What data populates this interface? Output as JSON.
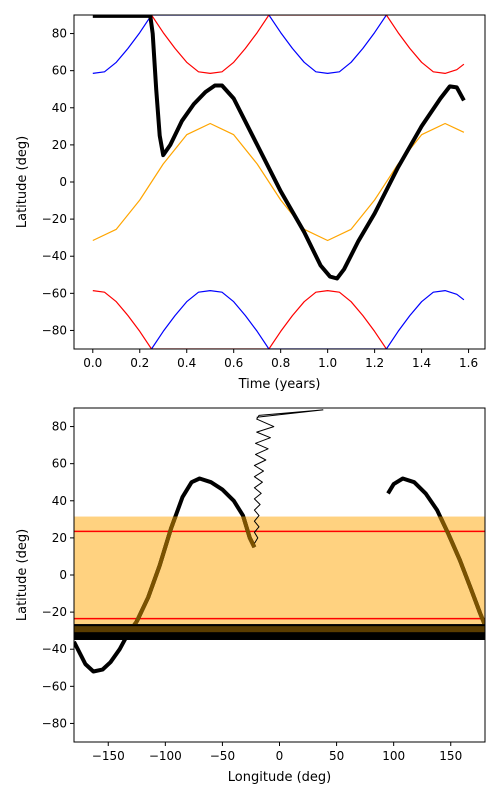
{
  "chart_data": [
    {
      "type": "line",
      "title": "",
      "xlabel": "Time (years)",
      "ylabel": "Latitude (deg)",
      "xlim": [
        -0.08,
        1.67
      ],
      "ylim": [
        -90,
        90
      ],
      "xticks": [
        0.0,
        0.2,
        0.4,
        0.6,
        0.8,
        1.0,
        1.2,
        1.4,
        1.6
      ],
      "xtick_labels": [
        "0.0",
        "0.2",
        "0.4",
        "0.6",
        "0.8",
        "1.0",
        "1.2",
        "1.4",
        "1.6"
      ],
      "yticks": [
        80,
        60,
        40,
        20,
        0,
        -20,
        -40,
        -60,
        -80
      ],
      "ytick_labels": [
        "80",
        "60",
        "40",
        "20",
        "0",
        "−20",
        "−40",
        "−60",
        "−80"
      ],
      "series": [
        {
          "name": "subsolar-latitude",
          "color": "#ffa500",
          "points": [
            [
              0.0,
              -31.5
            ],
            [
              0.1,
              -25.5
            ],
            [
              0.2,
              -9.7
            ],
            [
              0.3,
              9.7
            ],
            [
              0.4,
              25.5
            ],
            [
              0.5,
              31.5
            ],
            [
              0.6,
              25.5
            ],
            [
              0.7,
              9.7
            ],
            [
              0.8,
              -9.7
            ],
            [
              0.9,
              -25.5
            ],
            [
              1.0,
              -31.5
            ],
            [
              1.1,
              -25.5
            ],
            [
              1.2,
              -9.7
            ],
            [
              1.3,
              9.7
            ],
            [
              1.4,
              25.5
            ],
            [
              1.5,
              31.5
            ],
            [
              1.58,
              26.8
            ]
          ]
        },
        {
          "name": "north-blue",
          "color": "#0000ff",
          "points": [
            [
              0.0,
              58.5
            ],
            [
              0.05,
              59.4
            ],
            [
              0.1,
              64.5
            ],
            [
              0.15,
              72.0
            ],
            [
              0.2,
              80.5
            ],
            [
              0.25,
              90.0
            ],
            [
              0.75,
              90.0
            ],
            [
              0.8,
              80.5
            ],
            [
              0.85,
              72.0
            ],
            [
              0.9,
              64.5
            ],
            [
              0.95,
              59.4
            ],
            [
              1.0,
              58.5
            ],
            [
              1.05,
              59.4
            ],
            [
              1.1,
              64.5
            ],
            [
              1.15,
              72.0
            ],
            [
              1.2,
              80.5
            ],
            [
              1.25,
              90.0
            ]
          ]
        },
        {
          "name": "north-red",
          "color": "#ff0000",
          "points": [
            [
              0.25,
              90.0
            ],
            [
              0.3,
              80.5
            ],
            [
              0.35,
              72.0
            ],
            [
              0.4,
              64.5
            ],
            [
              0.45,
              59.4
            ],
            [
              0.5,
              58.5
            ],
            [
              0.55,
              59.4
            ],
            [
              0.6,
              64.5
            ],
            [
              0.65,
              72.0
            ],
            [
              0.7,
              80.5
            ],
            [
              0.75,
              90.0
            ],
            [
              1.25,
              90.0
            ],
            [
              1.3,
              80.5
            ],
            [
              1.35,
              72.0
            ],
            [
              1.4,
              64.5
            ],
            [
              1.45,
              59.4
            ],
            [
              1.5,
              58.5
            ],
            [
              1.55,
              60.5
            ],
            [
              1.58,
              63.5
            ]
          ]
        },
        {
          "name": "south-red",
          "color": "#ff0000",
          "points": [
            [
              0.0,
              -58.5
            ],
            [
              0.05,
              -59.4
            ],
            [
              0.1,
              -64.5
            ],
            [
              0.15,
              -72.0
            ],
            [
              0.2,
              -80.5
            ],
            [
              0.25,
              -90.0
            ],
            [
              0.75,
              -90.0
            ],
            [
              0.8,
              -80.5
            ],
            [
              0.85,
              -72.0
            ],
            [
              0.9,
              -64.5
            ],
            [
              0.95,
              -59.4
            ],
            [
              1.0,
              -58.5
            ],
            [
              1.05,
              -59.4
            ],
            [
              1.1,
              -64.5
            ],
            [
              1.15,
              -72.0
            ],
            [
              1.2,
              -80.5
            ],
            [
              1.25,
              -90.0
            ]
          ]
        },
        {
          "name": "south-blue",
          "color": "#0000ff",
          "points": [
            [
              0.25,
              -90.0
            ],
            [
              0.3,
              -80.5
            ],
            [
              0.35,
              -72.0
            ],
            [
              0.4,
              -64.5
            ],
            [
              0.45,
              -59.4
            ],
            [
              0.5,
              -58.5
            ],
            [
              0.55,
              -59.4
            ],
            [
              0.6,
              -64.5
            ],
            [
              0.65,
              -72.0
            ],
            [
              0.7,
              -80.5
            ],
            [
              0.75,
              -90.0
            ],
            [
              1.25,
              -90.0
            ],
            [
              1.3,
              -80.5
            ],
            [
              1.35,
              -72.0
            ],
            [
              1.4,
              -64.5
            ],
            [
              1.45,
              -59.4
            ],
            [
              1.5,
              -58.5
            ],
            [
              1.55,
              -60.5
            ],
            [
              1.58,
              -63.5
            ]
          ]
        },
        {
          "name": "trajectory-latitude",
          "color": "#000000",
          "width": 4,
          "points": [
            [
              0.0,
              89.5
            ],
            [
              0.245,
              89.5
            ],
            [
              0.255,
              80.0
            ],
            [
              0.27,
              50.0
            ],
            [
              0.285,
              25.0
            ],
            [
              0.3,
              14.5
            ],
            [
              0.33,
              20.0
            ],
            [
              0.38,
              33.0
            ],
            [
              0.43,
              42.0
            ],
            [
              0.48,
              48.5
            ],
            [
              0.52,
              52.0
            ],
            [
              0.55,
              52.0
            ],
            [
              0.6,
              45.0
            ],
            [
              0.7,
              20.0
            ],
            [
              0.8,
              -5.0
            ],
            [
              0.9,
              -27.0
            ],
            [
              0.97,
              -45.0
            ],
            [
              1.01,
              -51.0
            ],
            [
              1.04,
              -52.0
            ],
            [
              1.07,
              -47.0
            ],
            [
              1.13,
              -32.0
            ],
            [
              1.2,
              -17.0
            ],
            [
              1.3,
              8.0
            ],
            [
              1.4,
              30.0
            ],
            [
              1.48,
              45.0
            ],
            [
              1.52,
              51.5
            ],
            [
              1.55,
              51.0
            ],
            [
              1.58,
              44.0
            ]
          ]
        }
      ]
    },
    {
      "type": "line",
      "title": "",
      "xlabel": "Longitude (deg)",
      "ylabel": "Latitude (deg)",
      "xlim": [
        -180,
        180
      ],
      "ylim": [
        -90,
        90
      ],
      "xticks": [
        -150,
        -100,
        -50,
        0,
        50,
        100,
        150
      ],
      "xtick_labels": [
        "−150",
        "−100",
        "−50",
        "0",
        "50",
        "100",
        "150"
      ],
      "yticks": [
        80,
        60,
        40,
        20,
        0,
        -20,
        -40,
        -60,
        -80
      ],
      "ytick_labels": [
        "80",
        "60",
        "40",
        "20",
        "0",
        "−20",
        "−40",
        "−60",
        "−80"
      ],
      "bands": [
        {
          "name": "illuminated-band",
          "color": "#ffd280",
          "y_range": [
            -31.5,
            31.5
          ]
        },
        {
          "name": "dark-band",
          "color": "#000000",
          "y_range": [
            -35,
            -26.5
          ]
        }
      ],
      "hlines": [
        {
          "name": "tropic-north-line",
          "color": "#ff0000",
          "y": 23.5
        },
        {
          "name": "tropic-south-line",
          "color": "#ff0000",
          "y": -23.5
        }
      ],
      "series": [
        {
          "name": "spiral-trace",
          "color": "#000000",
          "width": 1,
          "points": [
            [
              -20,
              85
            ],
            [
              38,
              89
            ],
            [
              -18,
              86
            ],
            [
              -20,
              84
            ],
            [
              -5,
              80
            ],
            [
              -20,
              77
            ],
            [
              -8,
              74
            ],
            [
              -21,
              71
            ],
            [
              -10,
              68
            ],
            [
              -21,
              65
            ],
            [
              -12,
              62
            ],
            [
              -22,
              59
            ],
            [
              -14,
              56
            ],
            [
              -22,
              53
            ],
            [
              -15,
              50
            ],
            [
              -22,
              47
            ],
            [
              -16,
              44
            ],
            [
              -22,
              41
            ],
            [
              -17,
              38
            ],
            [
              -22,
              35
            ],
            [
              -18,
              32
            ],
            [
              -22,
              29
            ],
            [
              -18,
              26
            ],
            [
              -22,
              23
            ],
            [
              -19,
              20
            ],
            [
              -22,
              17
            ],
            [
              -22,
              15
            ]
          ]
        },
        {
          "name": "ground-track-1",
          "color": "#000000",
          "width": 4,
          "points": [
            [
              -22,
              15
            ],
            [
              -26,
              20
            ],
            [
              -32,
              32
            ],
            [
              -40,
              40
            ],
            [
              -50,
              46
            ],
            [
              -60,
              50
            ],
            [
              -70,
              52
            ],
            [
              -77,
              50
            ],
            [
              -85,
              42
            ],
            [
              -95,
              25
            ],
            [
              -105,
              5
            ],
            [
              -115,
              -12
            ],
            [
              -125,
              -25
            ]
          ]
        },
        {
          "name": "ground-track-2",
          "color": "#000000",
          "width": 4,
          "points": [
            [
              -180,
              -36
            ],
            [
              -175,
              -42
            ],
            [
              -170,
              -48
            ],
            [
              -163,
              -52
            ],
            [
              -155,
              -51
            ],
            [
              -148,
              -47
            ],
            [
              -140,
              -40
            ],
            [
              -133,
              -32
            ],
            [
              -125,
              -25
            ]
          ]
        },
        {
          "name": "ground-track-3",
          "color": "#000000",
          "width": 4,
          "points": [
            [
              95,
              44
            ],
            [
              100,
              49
            ],
            [
              108,
              52
            ],
            [
              118,
              50
            ],
            [
              128,
              44
            ],
            [
              138,
              35
            ],
            [
              148,
              22
            ],
            [
              158,
              8
            ],
            [
              168,
              -8
            ],
            [
              176,
              -21
            ],
            [
              180,
              -27
            ]
          ]
        }
      ]
    }
  ]
}
